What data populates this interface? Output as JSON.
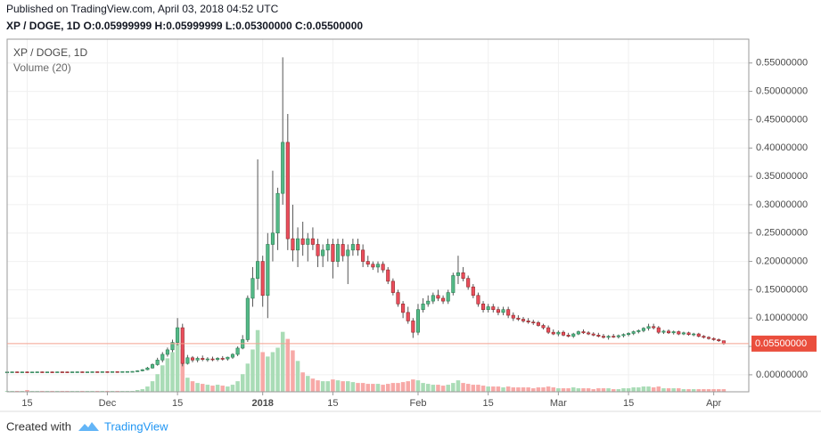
{
  "chart_data": {
    "type": "candlestick",
    "header": "Published on TradingView.com, April 03, 2018 04:52 UTC",
    "title": "XP / DOGE, 1D  O:0.05999999 H:0.05999999 L:0.05300000 C:0.05500000",
    "volume_label": "Volume (20)",
    "footer": "Created with",
    "brand": "TradingView",
    "up_color": "#53b987",
    "down_color": "#eb4d5c",
    "volume_up_color": "#a9dcb6",
    "volume_down_color": "#f7a9a7",
    "grid": true,
    "xlim": [
      0,
      148
    ],
    "xticks": [
      {
        "value": 4,
        "label": "15"
      },
      {
        "value": 20,
        "label": "Dec"
      },
      {
        "value": 34,
        "label": "15"
      },
      {
        "value": 51,
        "label": "2018"
      },
      {
        "value": 65,
        "label": "15"
      },
      {
        "value": 82,
        "label": "Feb"
      },
      {
        "value": 96,
        "label": "15"
      },
      {
        "value": 110,
        "label": "Mar"
      },
      {
        "value": 124,
        "label": "15"
      },
      {
        "value": 141,
        "label": "Apr"
      }
    ],
    "ylim": [
      -0.03,
      0.592
    ],
    "yticks": [
      {
        "value": 0,
        "label": "0.00000000"
      },
      {
        "value": 0.05,
        "label": "0.05000000"
      },
      {
        "value": 0.1,
        "label": "0.10000000"
      },
      {
        "value": 0.15,
        "label": "0.15000000"
      },
      {
        "value": 0.2,
        "label": "0.20000000"
      },
      {
        "value": 0.25,
        "label": "0.25000000"
      },
      {
        "value": 0.3,
        "label": "0.30000000"
      },
      {
        "value": 0.35,
        "label": "0.35000000"
      },
      {
        "value": 0.4,
        "label": "0.40000000"
      },
      {
        "value": 0.45,
        "label": "0.45000000"
      },
      {
        "value": 0.5,
        "label": "0.50000000"
      },
      {
        "value": 0.55,
        "label": "0.55000000"
      }
    ],
    "last_price": {
      "value": 0.055,
      "label": "0.05500000"
    },
    "volume_lim": [
      0,
      400
    ],
    "candles": [
      [
        0.005,
        0.0055,
        0.0045,
        0.005
      ],
      [
        0.005,
        0.0055,
        0.0045,
        0.0052
      ],
      [
        0.0052,
        0.0056,
        0.0046,
        0.005
      ],
      [
        0.005,
        0.0055,
        0.0045,
        0.0051
      ],
      [
        0.0051,
        0.0056,
        0.0046,
        0.0049
      ],
      [
        0.0049,
        0.0054,
        0.0044,
        0.005
      ],
      [
        0.005,
        0.0055,
        0.0045,
        0.0052
      ],
      [
        0.0052,
        0.0056,
        0.0047,
        0.005
      ],
      [
        0.005,
        0.0054,
        0.0045,
        0.0051
      ],
      [
        0.0051,
        0.0056,
        0.0046,
        0.005
      ],
      [
        0.005,
        0.0055,
        0.0045,
        0.0052
      ],
      [
        0.0052,
        0.0057,
        0.0047,
        0.0051
      ],
      [
        0.0051,
        0.0055,
        0.0046,
        0.005
      ],
      [
        0.005,
        0.0055,
        0.0045,
        0.0052
      ],
      [
        0.0052,
        0.0056,
        0.0047,
        0.0053
      ],
      [
        0.0053,
        0.0057,
        0.0048,
        0.0051
      ],
      [
        0.0051,
        0.0055,
        0.0046,
        0.0052
      ],
      [
        0.0052,
        0.0056,
        0.0047,
        0.0054
      ],
      [
        0.0054,
        0.0058,
        0.0049,
        0.0053
      ],
      [
        0.0053,
        0.0057,
        0.0048,
        0.0055
      ],
      [
        0.0055,
        0.006,
        0.005,
        0.0054
      ],
      [
        0.0054,
        0.0059,
        0.0049,
        0.0056
      ],
      [
        0.0056,
        0.006,
        0.0051,
        0.0055
      ],
      [
        0.0055,
        0.006,
        0.005,
        0.0057
      ],
      [
        0.0057,
        0.0062,
        0.0052,
        0.0058
      ],
      [
        0.0058,
        0.0063,
        0.0053,
        0.006
      ],
      [
        0.006,
        0.008,
        0.005,
        0.007
      ],
      [
        0.007,
        0.01,
        0.006,
        0.009
      ],
      [
        0.009,
        0.014,
        0.008,
        0.012
      ],
      [
        0.012,
        0.02,
        0.011,
        0.018
      ],
      [
        0.018,
        0.03,
        0.016,
        0.026
      ],
      [
        0.026,
        0.04,
        0.022,
        0.036
      ],
      [
        0.036,
        0.048,
        0.032,
        0.044
      ],
      [
        0.044,
        0.062,
        0.04,
        0.057
      ],
      [
        0.057,
        0.1,
        0.052,
        0.083
      ],
      [
        0.083,
        0.09,
        0.015,
        0.02
      ],
      [
        0.02,
        0.035,
        0.018,
        0.03
      ],
      [
        0.03,
        0.033,
        0.022,
        0.026
      ],
      [
        0.026,
        0.032,
        0.022,
        0.029
      ],
      [
        0.029,
        0.034,
        0.024,
        0.027
      ],
      [
        0.027,
        0.031,
        0.023,
        0.028
      ],
      [
        0.028,
        0.032,
        0.024,
        0.027
      ],
      [
        0.027,
        0.031,
        0.024,
        0.029
      ],
      [
        0.029,
        0.033,
        0.025,
        0.028
      ],
      [
        0.028,
        0.032,
        0.025,
        0.031
      ],
      [
        0.031,
        0.038,
        0.028,
        0.036
      ],
      [
        0.036,
        0.05,
        0.033,
        0.047
      ],
      [
        0.047,
        0.07,
        0.045,
        0.062
      ],
      [
        0.062,
        0.14,
        0.058,
        0.135
      ],
      [
        0.135,
        0.19,
        0.12,
        0.17
      ],
      [
        0.17,
        0.38,
        0.15,
        0.2
      ],
      [
        0.2,
        0.21,
        0.12,
        0.14
      ],
      [
        0.14,
        0.25,
        0.1,
        0.23
      ],
      [
        0.23,
        0.36,
        0.2,
        0.25
      ],
      [
        0.25,
        0.33,
        0.22,
        0.32
      ],
      [
        0.32,
        0.56,
        0.3,
        0.41
      ],
      [
        0.41,
        0.46,
        0.22,
        0.24
      ],
      [
        0.24,
        0.3,
        0.2,
        0.22
      ],
      [
        0.22,
        0.26,
        0.19,
        0.24
      ],
      [
        0.24,
        0.27,
        0.21,
        0.23
      ],
      [
        0.23,
        0.25,
        0.2,
        0.24
      ],
      [
        0.24,
        0.26,
        0.22,
        0.23
      ],
      [
        0.23,
        0.24,
        0.19,
        0.21
      ],
      [
        0.21,
        0.23,
        0.19,
        0.22
      ],
      [
        0.22,
        0.24,
        0.2,
        0.23
      ],
      [
        0.23,
        0.24,
        0.17,
        0.2
      ],
      [
        0.2,
        0.24,
        0.19,
        0.23
      ],
      [
        0.23,
        0.24,
        0.2,
        0.21
      ],
      [
        0.21,
        0.23,
        0.16,
        0.22
      ],
      [
        0.22,
        0.24,
        0.21,
        0.23
      ],
      [
        0.23,
        0.24,
        0.21,
        0.22
      ],
      [
        0.22,
        0.23,
        0.19,
        0.2
      ],
      [
        0.2,
        0.21,
        0.19,
        0.195
      ],
      [
        0.195,
        0.2,
        0.185,
        0.19
      ],
      [
        0.19,
        0.2,
        0.18,
        0.195
      ],
      [
        0.195,
        0.2,
        0.18,
        0.185
      ],
      [
        0.185,
        0.19,
        0.16,
        0.165
      ],
      [
        0.165,
        0.17,
        0.14,
        0.145
      ],
      [
        0.145,
        0.15,
        0.12,
        0.125
      ],
      [
        0.125,
        0.13,
        0.1,
        0.11
      ],
      [
        0.11,
        0.12,
        0.09,
        0.095
      ],
      [
        0.095,
        0.1,
        0.065,
        0.075
      ],
      [
        0.075,
        0.125,
        0.07,
        0.115
      ],
      [
        0.115,
        0.135,
        0.11,
        0.125
      ],
      [
        0.125,
        0.14,
        0.12,
        0.13
      ],
      [
        0.13,
        0.145,
        0.125,
        0.14
      ],
      [
        0.14,
        0.15,
        0.13,
        0.135
      ],
      [
        0.135,
        0.14,
        0.125,
        0.13
      ],
      [
        0.13,
        0.15,
        0.125,
        0.145
      ],
      [
        0.145,
        0.18,
        0.14,
        0.175
      ],
      [
        0.175,
        0.21,
        0.16,
        0.18
      ],
      [
        0.18,
        0.19,
        0.165,
        0.17
      ],
      [
        0.17,
        0.175,
        0.15,
        0.155
      ],
      [
        0.155,
        0.16,
        0.135,
        0.14
      ],
      [
        0.14,
        0.145,
        0.12,
        0.125
      ],
      [
        0.125,
        0.13,
        0.11,
        0.115
      ],
      [
        0.115,
        0.125,
        0.11,
        0.12
      ],
      [
        0.12,
        0.125,
        0.11,
        0.115
      ],
      [
        0.115,
        0.12,
        0.105,
        0.11
      ],
      [
        0.11,
        0.12,
        0.105,
        0.115
      ],
      [
        0.115,
        0.12,
        0.1,
        0.105
      ],
      [
        0.105,
        0.11,
        0.095,
        0.1
      ],
      [
        0.1,
        0.105,
        0.095,
        0.098
      ],
      [
        0.098,
        0.102,
        0.092,
        0.095
      ],
      [
        0.095,
        0.1,
        0.09,
        0.093
      ],
      [
        0.093,
        0.097,
        0.088,
        0.092
      ],
      [
        0.092,
        0.095,
        0.085,
        0.087
      ],
      [
        0.087,
        0.09,
        0.08,
        0.083
      ],
      [
        0.083,
        0.087,
        0.072,
        0.075
      ],
      [
        0.075,
        0.08,
        0.07,
        0.072
      ],
      [
        0.072,
        0.078,
        0.068,
        0.075
      ],
      [
        0.075,
        0.078,
        0.068,
        0.07
      ],
      [
        0.07,
        0.074,
        0.066,
        0.068
      ],
      [
        0.068,
        0.074,
        0.065,
        0.072
      ],
      [
        0.072,
        0.078,
        0.07,
        0.076
      ],
      [
        0.076,
        0.08,
        0.072,
        0.074
      ],
      [
        0.074,
        0.077,
        0.07,
        0.072
      ],
      [
        0.072,
        0.075,
        0.068,
        0.07
      ],
      [
        0.07,
        0.074,
        0.066,
        0.068
      ],
      [
        0.068,
        0.072,
        0.064,
        0.066
      ],
      [
        0.066,
        0.07,
        0.062,
        0.068
      ],
      [
        0.068,
        0.072,
        0.065,
        0.067
      ],
      [
        0.067,
        0.071,
        0.064,
        0.069
      ],
      [
        0.069,
        0.073,
        0.066,
        0.071
      ],
      [
        0.071,
        0.075,
        0.068,
        0.073
      ],
      [
        0.073,
        0.078,
        0.07,
        0.076
      ],
      [
        0.076,
        0.08,
        0.073,
        0.078
      ],
      [
        0.078,
        0.084,
        0.075,
        0.082
      ],
      [
        0.082,
        0.09,
        0.078,
        0.085
      ],
      [
        0.085,
        0.09,
        0.08,
        0.083
      ],
      [
        0.083,
        0.086,
        0.072,
        0.075
      ],
      [
        0.075,
        0.079,
        0.072,
        0.077
      ],
      [
        0.077,
        0.08,
        0.072,
        0.074
      ],
      [
        0.074,
        0.078,
        0.071,
        0.076
      ],
      [
        0.076,
        0.078,
        0.07,
        0.072
      ],
      [
        0.072,
        0.076,
        0.07,
        0.074
      ],
      [
        0.074,
        0.076,
        0.069,
        0.071
      ],
      [
        0.071,
        0.074,
        0.068,
        0.072
      ],
      [
        0.072,
        0.074,
        0.066,
        0.068
      ],
      [
        0.068,
        0.07,
        0.064,
        0.066
      ],
      [
        0.066,
        0.068,
        0.062,
        0.064
      ],
      [
        0.064,
        0.066,
        0.06,
        0.062
      ],
      [
        0.062,
        0.064,
        0.058,
        0.06
      ],
      [
        0.05999999,
        0.05999999,
        0.053,
        0.055
      ]
    ],
    "volume": [
      1,
      1,
      1,
      1,
      2,
      1,
      1,
      1,
      1,
      1,
      1,
      1,
      1,
      1,
      1,
      1,
      1,
      1,
      1,
      1,
      1,
      1,
      1,
      1,
      1,
      1,
      2,
      3,
      6,
      12,
      20,
      30,
      38,
      45,
      55,
      48,
      16,
      12,
      10,
      9,
      8,
      7,
      8,
      7,
      6,
      8,
      12,
      20,
      32,
      48,
      70,
      45,
      40,
      45,
      50,
      68,
      60,
      47,
      35,
      22,
      18,
      15,
      13,
      12,
      12,
      14,
      13,
      12,
      12,
      11,
      10,
      10,
      9,
      9,
      9,
      8,
      9,
      10,
      10,
      11,
      12,
      14,
      13,
      10,
      9,
      8,
      8,
      7,
      8,
      10,
      13,
      10,
      9,
      8,
      8,
      7,
      6,
      6,
      6,
      5,
      6,
      5,
      5,
      5,
      5,
      4,
      5,
      5,
      6,
      5,
      4,
      4,
      4,
      5,
      4,
      4,
      4,
      3,
      4,
      4,
      4,
      3,
      3,
      4,
      4,
      5,
      5,
      6,
      6,
      5,
      6,
      4,
      4,
      4,
      4,
      3,
      3,
      3,
      3,
      3,
      3,
      3,
      3,
      3
    ]
  }
}
